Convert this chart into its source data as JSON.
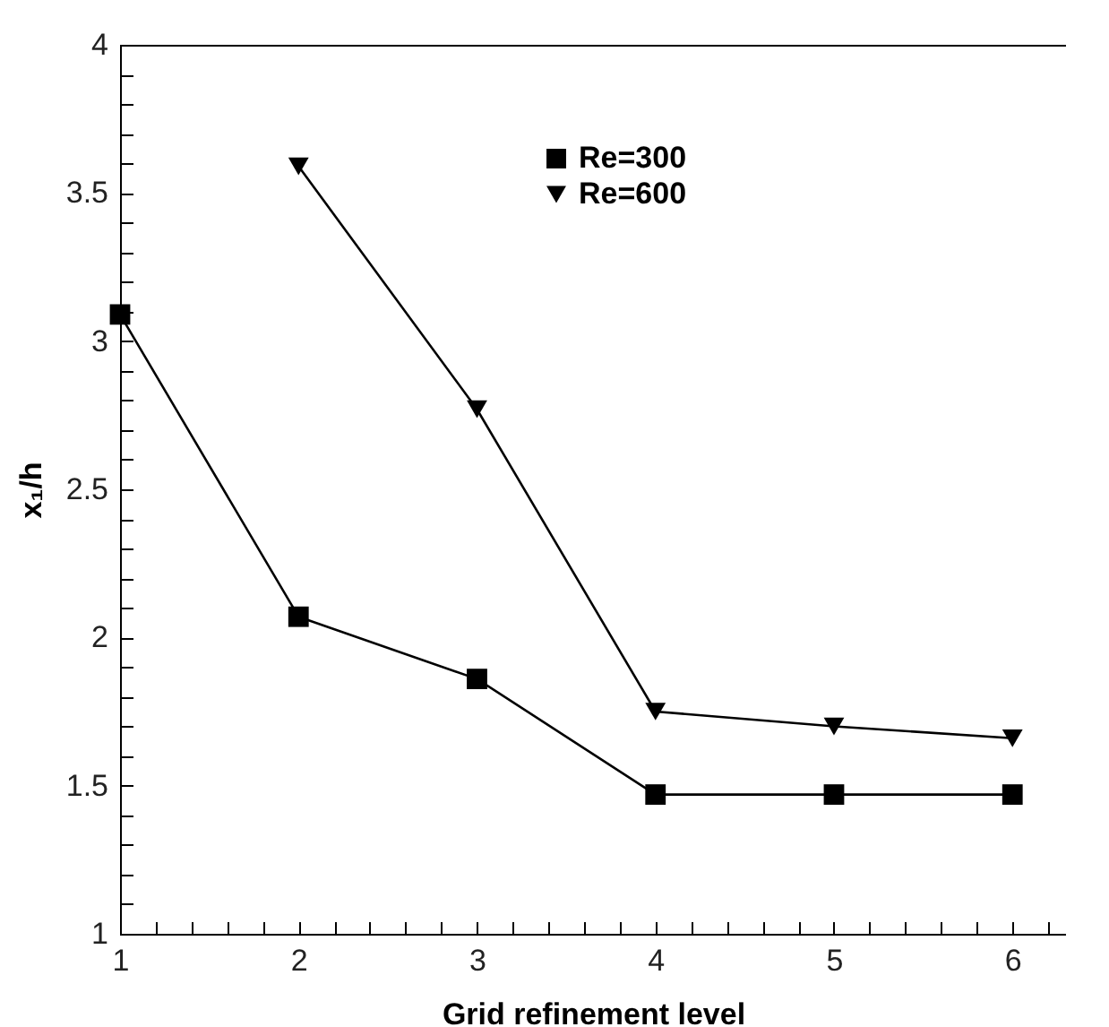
{
  "chart_data": {
    "type": "line",
    "xlabel": "Grid refinement level",
    "ylabel": "x₁/h",
    "x": [
      1,
      2,
      3,
      4,
      5,
      6
    ],
    "series": [
      {
        "name": "Re=300",
        "color": "#000000",
        "marker": "square",
        "values": [
          3.09,
          2.07,
          1.86,
          1.47,
          1.47,
          1.47
        ]
      },
      {
        "name": "Re=600",
        "color": "#000000",
        "marker": "triangle",
        "values": [
          null,
          3.59,
          2.77,
          1.75,
          1.7,
          1.66
        ]
      }
    ],
    "xlim": [
      1,
      6.3
    ],
    "xticks": [
      1,
      {
        "value": 1.2,
        "label": null
      },
      {
        "value": 1.4,
        "label": null
      },
      {
        "value": 1.6,
        "label": null
      },
      {
        "value": 1.8,
        "label": null
      },
      2,
      {
        "value": 2.2,
        "label": null
      },
      {
        "value": 2.4,
        "label": null
      },
      {
        "value": 2.6,
        "label": null
      },
      {
        "value": 2.8,
        "label": null
      },
      3,
      {
        "value": 3.2,
        "label": null
      },
      {
        "value": 3.4,
        "label": null
      },
      {
        "value": 3.6,
        "label": null
      },
      {
        "value": 3.8,
        "label": null
      },
      4,
      {
        "value": 4.2,
        "label": null
      },
      {
        "value": 4.4,
        "label": null
      },
      {
        "value": 4.6,
        "label": null
      },
      {
        "value": 4.8,
        "label": null
      },
      5,
      {
        "value": 5.2,
        "label": null
      },
      {
        "value": 5.4,
        "label": null
      },
      {
        "value": 5.6,
        "label": null
      },
      {
        "value": 5.8,
        "label": null
      },
      6,
      {
        "value": 6.2,
        "label": null
      }
    ],
    "ylim": [
      1,
      4
    ],
    "yticks": [
      1,
      {
        "value": 1.1,
        "label": null
      },
      {
        "value": 1.2,
        "label": null
      },
      {
        "value": 1.3,
        "label": null
      },
      {
        "value": 1.4,
        "label": null
      },
      1.5,
      {
        "value": 1.6,
        "label": null
      },
      {
        "value": 1.7,
        "label": null
      },
      {
        "value": 1.8,
        "label": null
      },
      {
        "value": 1.9,
        "label": null
      },
      2,
      {
        "value": 2.1,
        "label": null
      },
      {
        "value": 2.2,
        "label": null
      },
      {
        "value": 2.3,
        "label": null
      },
      {
        "value": 2.4,
        "label": null
      },
      2.5,
      {
        "value": 2.6,
        "label": null
      },
      {
        "value": 2.7,
        "label": null
      },
      {
        "value": 2.8,
        "label": null
      },
      {
        "value": 2.9,
        "label": null
      },
      3,
      {
        "value": 3.1,
        "label": null
      },
      {
        "value": 3.2,
        "label": null
      },
      {
        "value": 3.3,
        "label": null
      },
      {
        "value": 3.4,
        "label": null
      },
      3.5,
      {
        "value": 3.6,
        "label": null
      },
      {
        "value": 3.7,
        "label": null
      },
      {
        "value": 3.8,
        "label": null
      },
      {
        "value": 3.9,
        "label": null
      },
      4
    ],
    "grid": false,
    "legend": "top right",
    "line_style": "solid"
  }
}
